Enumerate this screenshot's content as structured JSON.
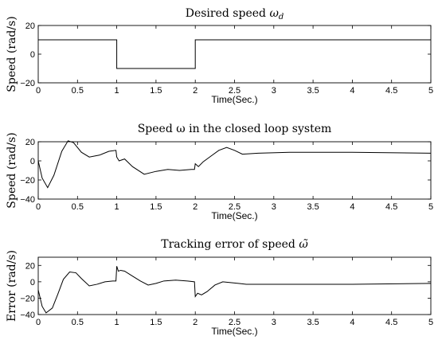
{
  "chart_data": [
    {
      "type": "line",
      "title_text": "Desired speed ",
      "title_symbol": "ω",
      "title_sub": "d",
      "xlabel": "Time(Sec.)",
      "ylabel": "Speed (rad/s)",
      "xlim": [
        0,
        5
      ],
      "ylim": [
        -20,
        20
      ],
      "xticks": [
        "0",
        "0.5",
        "1",
        "1.5",
        "2",
        "2.5",
        "3",
        "3.5",
        "4",
        "4.5",
        "5"
      ],
      "yticks": [
        "20",
        "0",
        "−20"
      ],
      "ytick_values": [
        20,
        0,
        -20
      ],
      "series": [
        {
          "x": [
            0,
            1.0,
            1.0,
            2.0,
            2.0,
            5.0
          ],
          "y": [
            10,
            10,
            -10,
            -10,
            10,
            10
          ]
        }
      ]
    },
    {
      "type": "line",
      "title_text": "Speed ω in the closed loop system",
      "xlabel": "Time(Sec.)",
      "ylabel": "Speed (rad/s)",
      "xlim": [
        0,
        5
      ],
      "ylim": [
        -40,
        20
      ],
      "xticks": [
        "0",
        "0.5",
        "1",
        "1.5",
        "2",
        "2.5",
        "3",
        "3.5",
        "4",
        "4.5",
        "5"
      ],
      "yticks": [
        "20",
        "0",
        "−20",
        "−40"
      ],
      "ytick_values": [
        20,
        0,
        -20,
        -40
      ],
      "series": [
        {
          "x": [
            0,
            0.05,
            0.12,
            0.2,
            0.3,
            0.38,
            0.45,
            0.55,
            0.65,
            0.78,
            0.9,
            0.99,
            1.0,
            1.03,
            1.1,
            1.2,
            1.35,
            1.5,
            1.65,
            1.8,
            1.95,
            1.99,
            2.0,
            2.04,
            2.1,
            2.2,
            2.3,
            2.4,
            2.5,
            2.6,
            2.8,
            3.2,
            4.0,
            5.0
          ],
          "y": [
            0,
            -18,
            -28,
            -15,
            10,
            21,
            19,
            9,
            4,
            6,
            10,
            11,
            4,
            0,
            2,
            -6,
            -14,
            -11,
            -9,
            -10,
            -9,
            -9,
            -3,
            -6,
            -1,
            5,
            11,
            14,
            11,
            7,
            8,
            9,
            9,
            8
          ]
        }
      ]
    },
    {
      "type": "line",
      "title_text": "Tracking error of speed ",
      "title_symbol": "ω̃",
      "xlabel": "Time(Sec.)",
      "ylabel": "Error (rad/s)",
      "xlim": [
        0,
        5
      ],
      "ylim": [
        -40,
        30
      ],
      "xticks": [
        "0",
        "0.5",
        "1",
        "1.5",
        "2",
        "2.5",
        "3",
        "3.5",
        "4",
        "4.5",
        "5"
      ],
      "yticks": [
        "20",
        "0",
        "−20",
        "−40"
      ],
      "ytick_values": [
        20,
        0,
        -20,
        -40
      ],
      "series": [
        {
          "x": [
            0,
            0.05,
            0.1,
            0.18,
            0.25,
            0.32,
            0.4,
            0.48,
            0.55,
            0.65,
            0.75,
            0.85,
            0.95,
            0.99,
            1.0,
            1.02,
            1.05,
            1.1,
            1.2,
            1.3,
            1.4,
            1.5,
            1.6,
            1.75,
            1.9,
            1.99,
            2.0,
            2.03,
            2.08,
            2.15,
            2.25,
            2.35,
            2.45,
            2.55,
            2.65,
            3.0,
            4.0,
            5.0
          ],
          "y": [
            -10,
            -30,
            -38,
            -32,
            -15,
            3,
            12,
            11,
            4,
            -5,
            -3,
            0,
            1,
            1,
            19,
            13,
            14,
            13,
            7,
            1,
            -4,
            -2,
            1,
            2,
            1,
            0,
            -18,
            -14,
            -16,
            -12,
            -4,
            0,
            -1,
            -2,
            -3,
            -3,
            -3,
            -2
          ]
        }
      ]
    }
  ]
}
